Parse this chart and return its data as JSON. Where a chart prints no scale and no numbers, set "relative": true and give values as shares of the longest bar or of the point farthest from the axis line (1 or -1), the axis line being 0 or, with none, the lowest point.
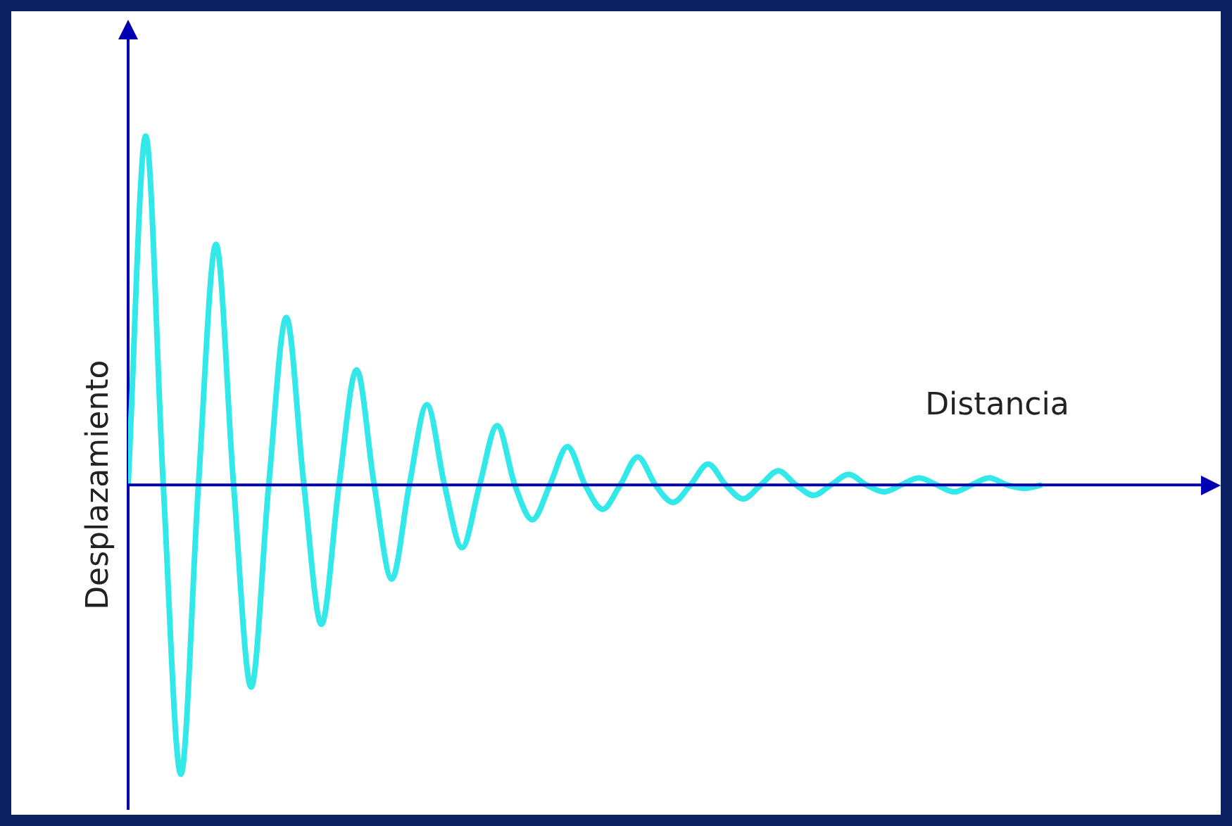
{
  "chart_data": {
    "type": "line",
    "xlabel": "Distancia",
    "ylabel": "Desplazamiento",
    "relative": true,
    "ref_lines": [
      {
        "axis": "y",
        "value": 0,
        "color": "#0000b0"
      }
    ],
    "marker": "none",
    "color": "#33e8e8",
    "categories": [
      null,
      null,
      null,
      null,
      null,
      null,
      null,
      null,
      null,
      null,
      null,
      null,
      null,
      null,
      null,
      null,
      null,
      null,
      null,
      null,
      null,
      null,
      null,
      null,
      null,
      null,
      null,
      null,
      null,
      null,
      null,
      null,
      null,
      null,
      null,
      null,
      null,
      null,
      null,
      null,
      null,
      null,
      null,
      null,
      null,
      null,
      null,
      null,
      null,
      null,
      null,
      null,
      null
    ],
    "values": [
      0,
      1,
      0,
      -0.83,
      0,
      0.69,
      0,
      -0.58,
      0,
      0.48,
      0,
      -0.4,
      0,
      0.33,
      0,
      -0.27,
      0,
      0.23,
      0,
      -0.18,
      0,
      0.17,
      0,
      -0.1,
      0,
      0.11,
      0,
      -0.07,
      0,
      0.08,
      0,
      -0.05,
      0,
      0.06,
      0,
      -0.04,
      0,
      0.04,
      0,
      -0.03,
      0,
      0.03,
      0,
      -0.02,
      0,
      0.02,
      0,
      -0.02,
      0,
      0.02,
      0,
      -0.01,
      0
    ]
  }
}
